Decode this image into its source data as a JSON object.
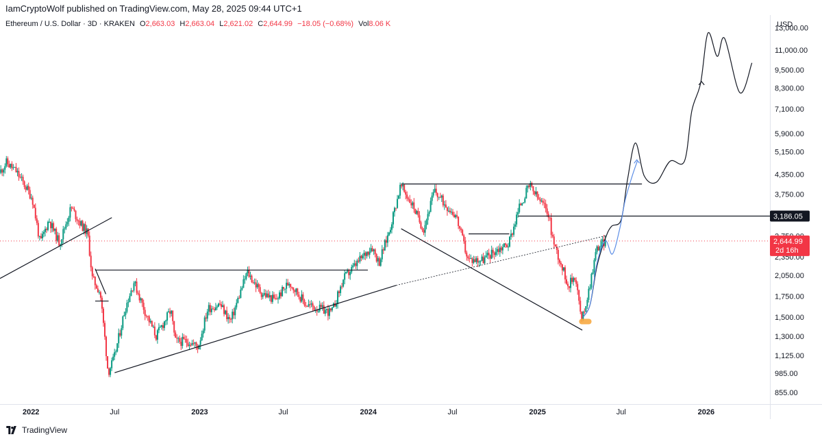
{
  "header": {
    "attribution": "IamCryptoWolf published on TradingView.com, May 28, 2025 09:44 UTC+1"
  },
  "symbol_bar": {
    "title": "Ethereum / U.S. Dollar · 3D · KRAKEN",
    "open_label": "O",
    "open_value": "2,663.03",
    "high_label": "H",
    "high_value": "2,663.04",
    "low_label": "L",
    "low_value": "2,621.02",
    "close_label": "C",
    "close_value": "2,644.99",
    "change": "−18.05 (−0.68%)",
    "volume_label": "Vol",
    "volume_value": "8.06 K"
  },
  "price_axis": {
    "currency": "USD",
    "ticks": [
      "13,000.00",
      "11,000.00",
      "9,500.00",
      "8,300.00",
      "7,100.00",
      "5,900.00",
      "5,150.00",
      "4,350.00",
      "3,750.00",
      "2,750.00",
      "2,350.00",
      "2,050.00",
      "1,750.00",
      "1,500.00",
      "1,300.00",
      "1,125.00",
      "985.00",
      "855.00"
    ],
    "level_badge": "3,186.05",
    "price_badge": "2,644.99",
    "countdown": "2d 16h"
  },
  "time_axis": {
    "ticks": [
      "2022",
      "Jul",
      "2023",
      "Jul",
      "2024",
      "Jul",
      "2025",
      "Jul",
      "2026"
    ]
  },
  "footer": {
    "brand": "TradingView"
  },
  "colors": {
    "up": "#089981",
    "down": "#f23645",
    "projection_black": "#131722",
    "projection_blue": "#5b8de6",
    "highlight": "#f7a437",
    "badge_dark": "#131722"
  },
  "chart_data": {
    "type": "candlestick",
    "symbol": "Ethereum / U.S. Dollar",
    "interval": "3D",
    "exchange": "KRAKEN",
    "y_scale": "log",
    "ylim": [
      820,
      14000
    ],
    "x_range": [
      "2021-10-26",
      "2026-05-19"
    ],
    "price_path": [
      [
        "2021-10-26",
        4400
      ],
      [
        "2021-11-10",
        4750
      ],
      [
        "2021-12-01",
        4450
      ],
      [
        "2021-12-20",
        4000
      ],
      [
        "2022-01-05",
        3650
      ],
      [
        "2022-01-22",
        2600
      ],
      [
        "2022-02-10",
        3100
      ],
      [
        "2022-03-05",
        2600
      ],
      [
        "2022-03-30",
        3400
      ],
      [
        "2022-04-20",
        3000
      ],
      [
        "2022-05-05",
        2800
      ],
      [
        "2022-05-15",
        2000
      ],
      [
        "2022-06-01",
        1800
      ],
      [
        "2022-06-13",
        1200
      ],
      [
        "2022-06-18",
        990
      ],
      [
        "2022-07-01",
        1100
      ],
      [
        "2022-07-25",
        1600
      ],
      [
        "2022-08-13",
        1950
      ],
      [
        "2022-09-07",
        1550
      ],
      [
        "2022-09-30",
        1300
      ],
      [
        "2022-11-01",
        1580
      ],
      [
        "2022-11-10",
        1250
      ],
      [
        "2022-12-10",
        1250
      ],
      [
        "2022-12-30",
        1200
      ],
      [
        "2023-01-20",
        1600
      ],
      [
        "2023-02-15",
        1650
      ],
      [
        "2023-03-10",
        1450
      ],
      [
        "2023-04-15",
        2100
      ],
      [
        "2023-05-15",
        1800
      ],
      [
        "2023-06-15",
        1700
      ],
      [
        "2023-07-15",
        1950
      ],
      [
        "2023-08-20",
        1650
      ],
      [
        "2023-09-15",
        1600
      ],
      [
        "2023-10-15",
        1550
      ],
      [
        "2023-11-10",
        2000
      ],
      [
        "2023-12-10",
        2250
      ],
      [
        "2024-01-10",
        2550
      ],
      [
        "2024-01-25",
        2250
      ],
      [
        "2024-02-15",
        2800
      ],
      [
        "2024-03-12",
        4000
      ],
      [
        "2024-04-10",
        3400
      ],
      [
        "2024-04-20",
        3100
      ],
      [
        "2024-05-01",
        2900
      ],
      [
        "2024-05-24",
        3850
      ],
      [
        "2024-06-15",
        3500
      ],
      [
        "2024-07-10",
        3200
      ],
      [
        "2024-08-05",
        2300
      ],
      [
        "2024-09-06",
        2300
      ],
      [
        "2024-10-01",
        2450
      ],
      [
        "2024-11-01",
        2600
      ],
      [
        "2024-11-25",
        3450
      ],
      [
        "2024-12-16",
        4000
      ],
      [
        "2025-01-05",
        3600
      ],
      [
        "2025-01-25",
        3300
      ],
      [
        "2025-02-05",
        2650
      ],
      [
        "2025-03-10",
        1900
      ],
      [
        "2025-03-25",
        2050
      ],
      [
        "2025-04-08",
        1450
      ],
      [
        "2025-04-22",
        1800
      ],
      [
        "2025-05-10",
        2500
      ],
      [
        "2025-05-28",
        2645
      ]
    ],
    "projection_black": [
      [
        "2025-04-10",
        1500
      ],
      [
        "2025-04-25",
        1650
      ],
      [
        "2025-05-10",
        2200
      ],
      [
        "2025-05-28",
        2700
      ],
      [
        "2025-06-10",
        2950
      ],
      [
        "2025-07-01",
        3100
      ],
      [
        "2025-07-15",
        4200
      ],
      [
        "2025-08-01",
        5500
      ],
      [
        "2025-08-20",
        4300
      ],
      [
        "2025-09-15",
        4100
      ],
      [
        "2025-10-15",
        4800
      ],
      [
        "2025-11-15",
        4800
      ],
      [
        "2025-12-01",
        7000
      ],
      [
        "2025-12-20",
        8600
      ],
      [
        "2026-01-05",
        12500
      ],
      [
        "2026-01-25",
        10500
      ],
      [
        "2026-02-10",
        12000
      ],
      [
        "2026-03-15",
        8000
      ],
      [
        "2026-04-10",
        10000
      ]
    ],
    "projection_blue": [
      [
        "2025-04-10",
        1500
      ],
      [
        "2025-04-25",
        1650
      ],
      [
        "2025-05-10",
        2250
      ],
      [
        "2025-05-28",
        2650
      ],
      [
        "2025-06-12",
        2400
      ],
      [
        "2025-06-28",
        2900
      ],
      [
        "2025-07-10",
        3600
      ],
      [
        "2025-07-25",
        4300
      ],
      [
        "2025-08-05",
        4800
      ]
    ],
    "resistance_level": 3186.05,
    "current_price": 2644.99
  }
}
